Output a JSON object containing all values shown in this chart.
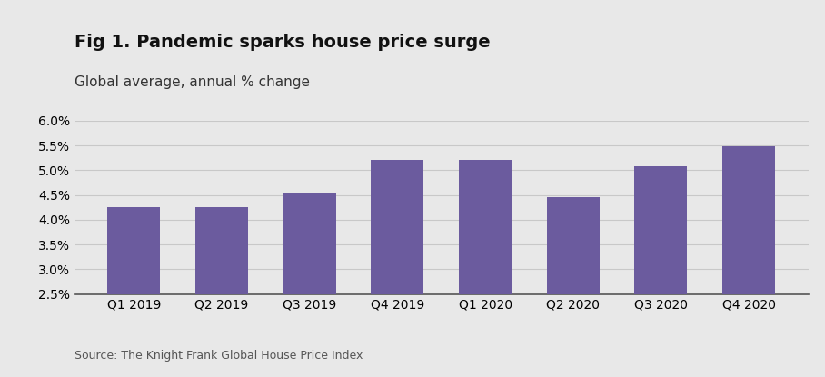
{
  "title": "Fig 1. Pandemic sparks house price surge",
  "subtitle": "Global average, annual % change",
  "source": "Source: The Knight Frank Global House Price Index",
  "categories": [
    "Q1 2019",
    "Q2 2019",
    "Q3 2019",
    "Q4 2019",
    "Q1 2020",
    "Q2 2020",
    "Q3 2020",
    "Q4 2020"
  ],
  "values": [
    4.25,
    4.25,
    4.55,
    5.2,
    5.2,
    4.45,
    5.08,
    5.48
  ],
  "bar_color": "#6b5b9e",
  "background_color": "#e8e8e8",
  "ylim": [
    2.5,
    6.0
  ],
  "yticks": [
    2.5,
    3.0,
    3.5,
    4.0,
    4.5,
    5.0,
    5.5,
    6.0
  ],
  "title_fontsize": 14,
  "subtitle_fontsize": 11,
  "tick_fontsize": 10,
  "source_fontsize": 9,
  "grid_color": "#c8c8c8"
}
